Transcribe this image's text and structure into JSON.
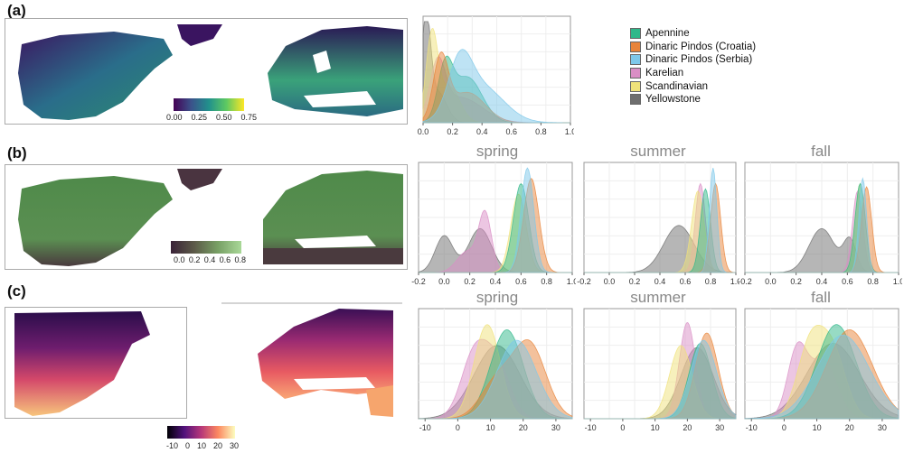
{
  "panel_labels": [
    "(a)",
    "(b)",
    "(c)"
  ],
  "seasons": [
    "spring",
    "summer",
    "fall"
  ],
  "legend": [
    {
      "name": "Apennine",
      "color": "#2fb88a"
    },
    {
      "name": "Dinaric Pindos (Croatia)",
      "color": "#e8843a"
    },
    {
      "name": "Dinaric Pindos (Serbia)",
      "color": "#7ec8ea"
    },
    {
      "name": "Karelian",
      "color": "#d98ec5"
    },
    {
      "name": "Scandinavian",
      "color": "#f0e27a"
    },
    {
      "name": "Yellowstone",
      "color": "#6e6e6e"
    }
  ],
  "map_colorbars": [
    {
      "ticks": [
        "0.00",
        "0.25",
        "0.50",
        "0.75"
      ],
      "scheme": "viridis"
    },
    {
      "ticks": [
        "0.0",
        "0.2",
        "0.4",
        "0.6",
        "0.8"
      ],
      "scheme": "green"
    },
    {
      "ticks": [
        "-10",
        "0",
        "10",
        "20",
        "30"
      ],
      "scheme": "magma"
    }
  ],
  "chart_data": [
    {
      "type": "area",
      "panel": "(a)",
      "xlim": [
        0,
        1
      ],
      "xticks": [
        "0.0",
        "0.2",
        "0.4",
        "0.6",
        "0.8",
        "1.0"
      ],
      "series": [
        {
          "name": "Apennine",
          "peaks": [
            [
              0.15,
              0.05,
              0.5
            ],
            [
              0.3,
              0.1,
              0.45
            ]
          ]
        },
        {
          "name": "Dinaric Pindos (Croatia)",
          "peaks": [
            [
              0.12,
              0.05,
              0.6
            ],
            [
              0.3,
              0.12,
              0.3
            ]
          ]
        },
        {
          "name": "Dinaric Pindos (Serbia)",
          "peaks": [
            [
              0.25,
              0.08,
              0.5
            ],
            [
              0.4,
              0.15,
              0.35
            ]
          ]
        },
        {
          "name": "Karelian",
          "peaks": [
            [
              0.1,
              0.05,
              0.5
            ],
            [
              0.25,
              0.15,
              0.25
            ]
          ]
        },
        {
          "name": "Scandinavian",
          "peaks": [
            [
              0.06,
              0.04,
              0.85
            ],
            [
              0.18,
              0.07,
              0.35
            ]
          ]
        },
        {
          "name": "Yellowstone",
          "peaks": [
            [
              0.02,
              0.03,
              1.0
            ],
            [
              0.1,
              0.06,
              0.3
            ]
          ]
        }
      ]
    },
    {
      "type": "area",
      "panel": "(b)",
      "season": "spring",
      "xlim": [
        -0.2,
        1
      ],
      "xticks": [
        "-0.2",
        "0.0",
        "0.2",
        "0.4",
        "0.6",
        "0.8",
        "1.0"
      ],
      "series": [
        {
          "name": "Apennine",
          "peaks": [
            [
              0.6,
              0.06,
              0.85
            ]
          ]
        },
        {
          "name": "Dinaric Pindos (Croatia)",
          "peaks": [
            [
              0.68,
              0.06,
              0.9
            ]
          ]
        },
        {
          "name": "Dinaric Pindos (Serbia)",
          "peaks": [
            [
              0.65,
              0.05,
              1.0
            ]
          ]
        },
        {
          "name": "Karelian",
          "peaks": [
            [
              0.32,
              0.05,
              0.55
            ],
            [
              0.18,
              0.08,
              0.2
            ]
          ]
        },
        {
          "name": "Scandinavian",
          "peaks": [
            [
              0.58,
              0.06,
              0.75
            ]
          ]
        },
        {
          "name": "Yellowstone",
          "peaks": [
            [
              0.0,
              0.07,
              0.35
            ],
            [
              0.28,
              0.09,
              0.42
            ]
          ]
        }
      ]
    },
    {
      "type": "area",
      "panel": "(b)",
      "season": "summer",
      "xlim": [
        -0.2,
        1
      ],
      "xticks": [
        "-0.2",
        "0.0",
        "0.2",
        "0.4",
        "0.6",
        "0.8",
        "1.0"
      ],
      "series": [
        {
          "name": "Apennine",
          "peaks": [
            [
              0.76,
              0.04,
              0.8
            ]
          ]
        },
        {
          "name": "Dinaric Pindos (Croatia)",
          "peaks": [
            [
              0.84,
              0.04,
              0.85
            ]
          ]
        },
        {
          "name": "Dinaric Pindos (Serbia)",
          "peaks": [
            [
              0.82,
              0.03,
              1.0
            ]
          ]
        },
        {
          "name": "Karelian",
          "peaks": [
            [
              0.72,
              0.04,
              0.85
            ]
          ]
        },
        {
          "name": "Scandinavian",
          "peaks": [
            [
              0.7,
              0.05,
              0.78
            ]
          ]
        },
        {
          "name": "Yellowstone",
          "peaks": [
            [
              0.55,
              0.12,
              0.45
            ]
          ]
        }
      ]
    },
    {
      "type": "area",
      "panel": "(b)",
      "season": "fall",
      "xlim": [
        -0.2,
        1
      ],
      "xticks": [
        "-0.2",
        "0.0",
        "0.2",
        "0.4",
        "0.6",
        "0.8",
        "1.0"
      ],
      "series": [
        {
          "name": "Apennine",
          "peaks": [
            [
              0.7,
              0.04,
              0.85
            ]
          ]
        },
        {
          "name": "Dinaric Pindos (Croatia)",
          "peaks": [
            [
              0.75,
              0.04,
              0.82
            ]
          ]
        },
        {
          "name": "Dinaric Pindos (Serbia)",
          "peaks": [
            [
              0.72,
              0.03,
              0.9
            ]
          ]
        },
        {
          "name": "Karelian",
          "peaks": [
            [
              0.68,
              0.04,
              0.78
            ]
          ]
        },
        {
          "name": "Scandinavian",
          "peaks": [
            [
              0.7,
              0.04,
              0.85
            ]
          ]
        },
        {
          "name": "Yellowstone",
          "peaks": [
            [
              0.4,
              0.1,
              0.42
            ],
            [
              0.62,
              0.05,
              0.3
            ]
          ]
        }
      ]
    },
    {
      "type": "area",
      "panel": "(c)",
      "season": "spring",
      "xlim": [
        -12,
        35
      ],
      "xticks": [
        "-10",
        "0",
        "10",
        "20",
        "30"
      ],
      "series": [
        {
          "name": "Apennine",
          "peaks": [
            [
              15,
              5,
              0.85
            ]
          ]
        },
        {
          "name": "Dinaric Pindos (Croatia)",
          "peaks": [
            [
              22,
              5,
              0.7
            ],
            [
              12,
              5,
              0.35
            ]
          ]
        },
        {
          "name": "Dinaric Pindos (Serbia)",
          "peaks": [
            [
              18,
              6,
              0.75
            ]
          ]
        },
        {
          "name": "Karelian",
          "peaks": [
            [
              5,
              4,
              0.6
            ],
            [
              12,
              4,
              0.5
            ]
          ]
        },
        {
          "name": "Scandinavian",
          "peaks": [
            [
              9,
              4,
              0.9
            ]
          ]
        },
        {
          "name": "Yellowstone",
          "peaks": [
            [
              12,
              7,
              0.7
            ]
          ]
        }
      ]
    },
    {
      "type": "area",
      "panel": "(c)",
      "season": "summer",
      "xlim": [
        -12,
        35
      ],
      "xticks": [
        "-10",
        "0",
        "10",
        "20",
        "30"
      ],
      "series": [
        {
          "name": "Apennine",
          "peaks": [
            [
              24,
              3.5,
              0.72
            ]
          ]
        },
        {
          "name": "Dinaric Pindos (Croatia)",
          "peaks": [
            [
              26,
              3.5,
              0.82
            ]
          ]
        },
        {
          "name": "Dinaric Pindos (Serbia)",
          "peaks": [
            [
              25,
              4,
              0.75
            ]
          ]
        },
        {
          "name": "Karelian",
          "peaks": [
            [
              20,
              2.5,
              0.92
            ]
          ]
        },
        {
          "name": "Scandinavian",
          "peaks": [
            [
              18,
              3.5,
              0.7
            ]
          ]
        },
        {
          "name": "Yellowstone",
          "peaks": [
            [
              23,
              5,
              0.68
            ]
          ]
        }
      ]
    },
    {
      "type": "area",
      "panel": "(c)",
      "season": "fall",
      "xlim": [
        -12,
        35
      ],
      "xticks": [
        "-10",
        "0",
        "10",
        "20",
        "30"
      ],
      "series": [
        {
          "name": "Apennine",
          "peaks": [
            [
              16,
              6,
              0.9
            ]
          ]
        },
        {
          "name": "Dinaric Pindos (Croatia)",
          "peaks": [
            [
              20,
              7,
              0.85
            ]
          ]
        },
        {
          "name": "Dinaric Pindos (Serbia)",
          "peaks": [
            [
              18,
              8,
              0.8
            ]
          ]
        },
        {
          "name": "Karelian",
          "peaks": [
            [
              4,
              3,
              0.65
            ],
            [
              12,
              4,
              0.55
            ]
          ]
        },
        {
          "name": "Scandinavian",
          "peaks": [
            [
              8,
              4,
              0.7
            ],
            [
              15,
              4,
              0.6
            ]
          ]
        },
        {
          "name": "Yellowstone",
          "peaks": [
            [
              15,
              8,
              0.72
            ]
          ]
        }
      ]
    }
  ]
}
